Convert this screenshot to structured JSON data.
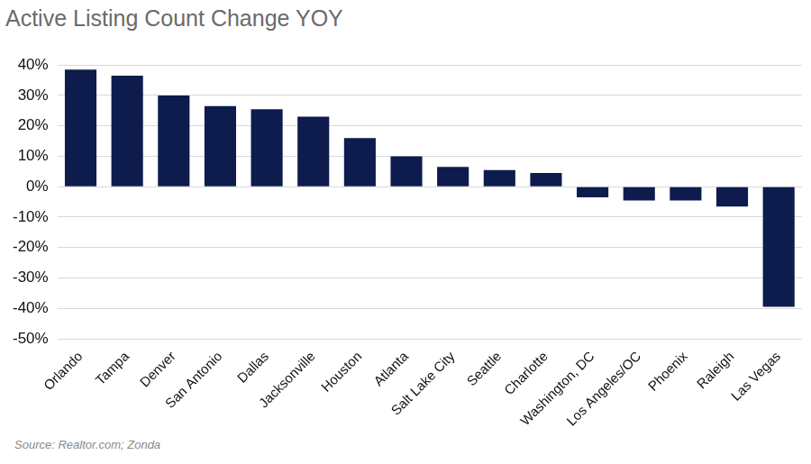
{
  "chart_data": {
    "type": "bar",
    "title": "Active Listing Count Change YOY",
    "source": "Source: Realtor.com; Zonda",
    "categories": [
      "Orlando",
      "Tampa",
      "Denver",
      "San Antonio",
      "Dallas",
      "Jacksonville",
      "Houston",
      "Atlanta",
      "Salt Lake City",
      "Seattle",
      "Charlotte",
      "Washington, DC",
      "Los Angeles/OC",
      "Phoenix",
      "Raleigh",
      "Las Vegas"
    ],
    "values": [
      38.5,
      36.5,
      30,
      26.5,
      25.5,
      23,
      16,
      10,
      6.5,
      5.5,
      4.5,
      -3.5,
      -4.5,
      -4.5,
      -6.5,
      -39.5
    ],
    "color": "#0d1c4d",
    "ylim": [
      -50,
      40
    ],
    "yticks": [
      {
        "value": -50,
        "label": "-50%"
      },
      {
        "value": -40,
        "label": "-40%"
      },
      {
        "value": -30,
        "label": "-30%"
      },
      {
        "value": -20,
        "label": "-20%"
      },
      {
        "value": -10,
        "label": "-10%"
      },
      {
        "value": 0,
        "label": "0%"
      },
      {
        "value": 10,
        "label": "10%"
      },
      {
        "value": 20,
        "label": "20%"
      },
      {
        "value": 30,
        "label": "30%"
      },
      {
        "value": 40,
        "label": "40%"
      }
    ],
    "grid": true
  }
}
